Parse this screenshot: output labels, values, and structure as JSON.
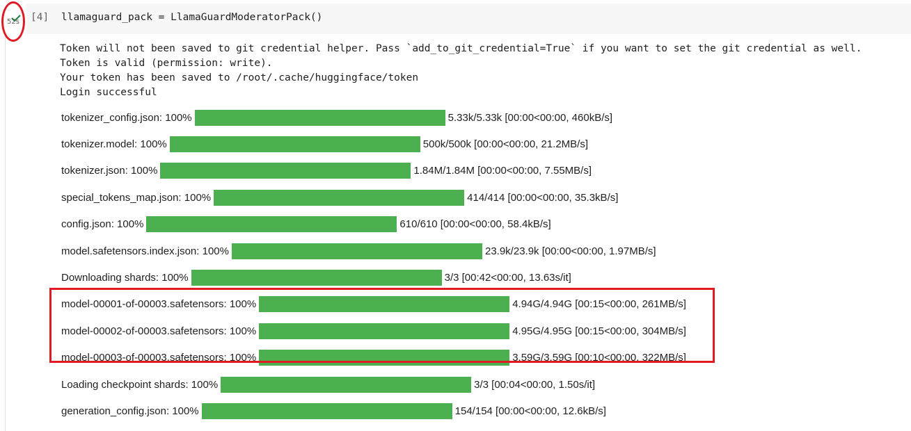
{
  "cell": {
    "duration": "52s",
    "execution_count": "[4]",
    "code": "llamaguard_pack = LlamaGuardModeratorPack()"
  },
  "output": {
    "log_lines": [
      "Token will not been saved to git credential helper. Pass `add_to_git_credential=True` if you want to set the git credential as well.",
      "Token is valid (permission: write).",
      "Your token has been saved to /root/.cache/huggingface/token",
      "Login successful"
    ],
    "progress_rows": [
      {
        "label": "tokenizer_config.json: 100%",
        "stats": "5.33k/5.33k [00:00<00:00, 460kB/s]"
      },
      {
        "label": "tokenizer.model: 100%",
        "stats": "500k/500k [00:00<00:00, 21.2MB/s]"
      },
      {
        "label": "tokenizer.json: 100%",
        "stats": "1.84M/1.84M [00:00<00:00, 7.55MB/s]"
      },
      {
        "label": "special_tokens_map.json: 100%",
        "stats": "414/414 [00:00<00:00, 35.3kB/s]"
      },
      {
        "label": "config.json: 100%",
        "stats": "610/610 [00:00<00:00, 58.4kB/s]"
      },
      {
        "label": "model.safetensors.index.json: 100%",
        "stats": "23.9k/23.9k [00:00<00:00, 1.97MB/s]"
      },
      {
        "label": "Downloading shards: 100%",
        "stats": "3/3 [00:42<00:00, 13.63s/it]"
      },
      {
        "label": "model-00001-of-00003.safetensors: 100%",
        "stats": "4.94G/4.94G [00:15<00:00, 261MB/s]"
      },
      {
        "label": "model-00002-of-00003.safetensors: 100%",
        "stats": "4.95G/4.95G [00:15<00:00, 304MB/s]"
      },
      {
        "label": "model-00003-of-00003.safetensors: 100%",
        "stats": "3.59G/3.59G [00:10<00:00, 322MB/s]"
      },
      {
        "label": "Loading checkpoint shards: 100%",
        "stats": "3/3 [00:04<00:00, 1.50s/it]"
      },
      {
        "label": "generation_config.json: 100%",
        "stats": "154/154 [00:00<00:00, 12.6kB/s]"
      }
    ]
  }
}
